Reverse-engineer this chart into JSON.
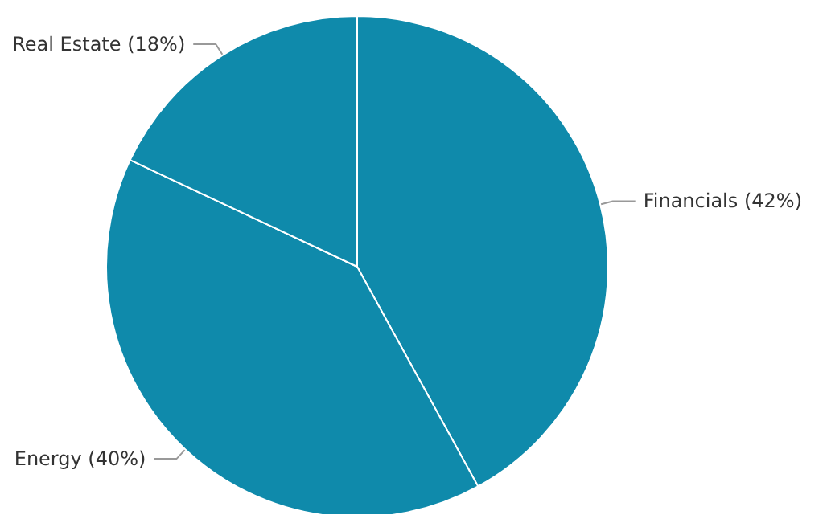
{
  "chart_data": {
    "type": "pie",
    "categories": [
      "Financials",
      "Energy",
      "Real Estate"
    ],
    "values": [
      42,
      40,
      18
    ],
    "value_labels": [
      "(42%)",
      "(40%)",
      "(18%)"
    ],
    "colors": [
      "#0f8aab",
      "#0f8aab",
      "#0f8aab"
    ],
    "legend": false
  }
}
